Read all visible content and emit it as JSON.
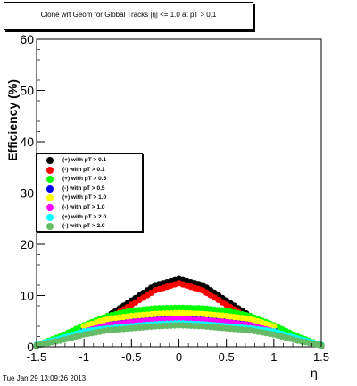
{
  "chart_data": {
    "type": "scatter",
    "title": "Clone wrt Geom for Global Tracks |η| <= 1.0 at pT > 0.1",
    "xlabel": "η",
    "ylabel": "Efficiency (%)",
    "xlim": [
      -1.5,
      1.5
    ],
    "ylim": [
      0,
      60
    ],
    "x_ticks": [
      "-1.5",
      "-1",
      "-0.5",
      "0",
      "0.5",
      "1",
      "1.5"
    ],
    "y_ticks": [
      "0",
      "10",
      "20",
      "30",
      "40",
      "50",
      "60"
    ],
    "legend_position": "left-middle",
    "timestamp": "Tue Jan 29 13:09:26 2013",
    "series": [
      {
        "name": "(+) with pT > 0.1",
        "color": "#000000",
        "x": [
          -1.5,
          -1.25,
          -1.0,
          -0.75,
          -0.5,
          -0.25,
          0.0,
          0.25,
          0.5,
          0.75,
          1.0,
          1.25,
          1.5
        ],
        "y": [
          0.2,
          1.8,
          3.6,
          6.0,
          9.0,
          12.0,
          13.2,
          12.0,
          9.0,
          6.0,
          3.6,
          1.8,
          0.2
        ]
      },
      {
        "name": "(-) with pT > 0.1",
        "color": "#ff0000",
        "x": [
          -0.75,
          -0.5,
          -0.25,
          0.0,
          0.25,
          0.5,
          0.75
        ],
        "y": [
          5.4,
          8.2,
          11.0,
          12.4,
          11.0,
          8.2,
          5.4
        ]
      },
      {
        "name": "(+) with pT > 0.5",
        "color": "#00ff00",
        "x": [
          -1.5,
          -1.25,
          -1.0,
          -0.75,
          -0.5,
          -0.25,
          0.0,
          0.25,
          0.5,
          0.75,
          1.0,
          1.25,
          1.5
        ],
        "y": [
          0.3,
          2.0,
          4.2,
          6.0,
          7.0,
          7.5,
          7.6,
          7.5,
          7.0,
          6.0,
          4.2,
          2.0,
          0.3
        ]
      },
      {
        "name": "(-) with pT > 0.5",
        "color": "#0000ff",
        "x": [
          -1.0,
          -0.75,
          -0.5,
          -0.25,
          0.0,
          0.25,
          0.5,
          0.75,
          1.0
        ],
        "y": [
          3.4,
          4.6,
          5.2,
          5.4,
          5.6,
          5.4,
          5.2,
          4.6,
          3.4
        ]
      },
      {
        "name": "(+) with pT > 1.0",
        "color": "#ffff00",
        "x": [
          -1.0,
          -0.75,
          -0.5,
          -0.25,
          0.0,
          0.25,
          0.5,
          0.75,
          1.0
        ],
        "y": [
          4.0,
          5.4,
          6.0,
          6.4,
          6.6,
          6.4,
          6.0,
          5.4,
          4.0
        ]
      },
      {
        "name": "(-) with pT > 1.0",
        "color": "#ff00ff",
        "x": [
          -1.0,
          -0.75,
          -0.5,
          -0.25,
          0.0,
          0.25,
          0.5,
          0.75,
          1.0
        ],
        "y": [
          3.0,
          4.2,
          4.8,
          5.2,
          5.4,
          5.2,
          4.8,
          4.2,
          3.0
        ]
      },
      {
        "name": "(+) with pT > 2.0",
        "color": "#00ffff",
        "x": [
          -1.5,
          -1.25,
          -1.0,
          -0.75,
          -0.5,
          -0.25,
          0.0,
          0.25,
          0.5,
          0.75,
          1.0,
          1.25,
          1.5
        ],
        "y": [
          0.4,
          1.6,
          3.0,
          3.6,
          4.0,
          4.4,
          4.6,
          4.4,
          4.0,
          3.6,
          3.0,
          1.6,
          0.4
        ]
      },
      {
        "name": "(-) with pT > 2.0",
        "color": "#66bb66",
        "x": [
          -1.5,
          -1.25,
          -1.0,
          -0.75,
          -0.5,
          -0.25,
          0.0,
          0.25,
          0.5,
          0.75,
          1.0,
          1.25,
          1.5
        ],
        "y": [
          0.3,
          1.2,
          2.4,
          3.2,
          3.6,
          4.0,
          4.2,
          4.0,
          3.6,
          3.2,
          2.4,
          1.2,
          0.3
        ]
      }
    ]
  }
}
